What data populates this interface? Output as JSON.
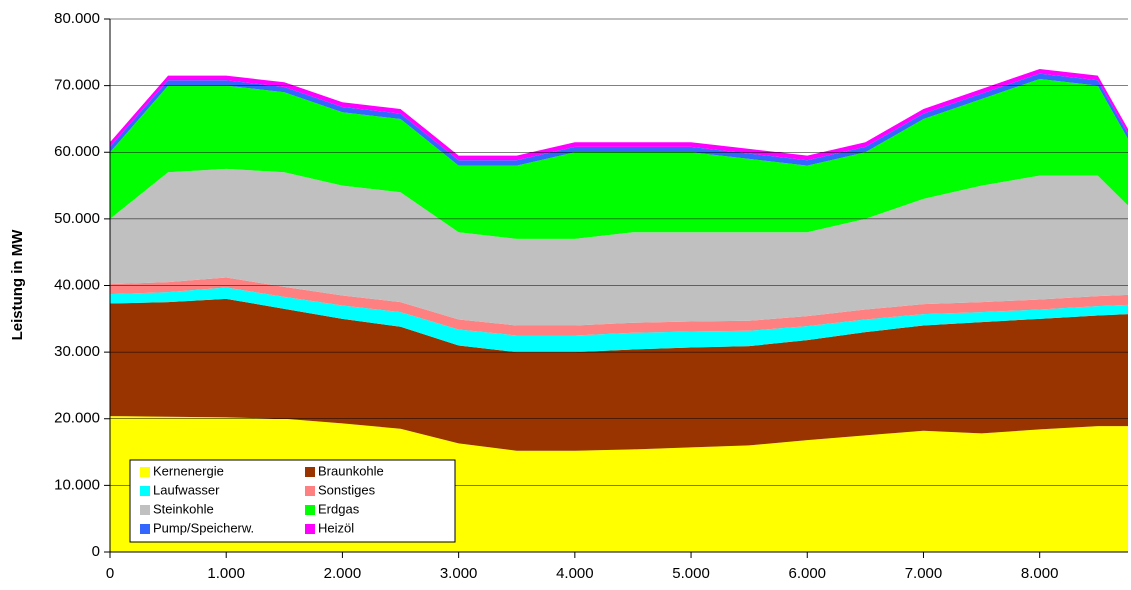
{
  "chart_data": {
    "type": "stacked_area",
    "y_label": "Leistung in MW",
    "x": [
      0,
      500,
      1000,
      1500,
      2000,
      2500,
      3000,
      3500,
      4000,
      4500,
      5000,
      5500,
      6000,
      6500,
      7000,
      7500,
      8000,
      8500,
      8760
    ],
    "series": [
      {
        "name": "Kernenergie",
        "color": "#ffff00",
        "values": [
          20400,
          20300,
          20200,
          20000,
          19300,
          18500,
          16300,
          15200,
          15200,
          15400,
          15700,
          16000,
          16800,
          17500,
          18200,
          17800,
          18400,
          18900,
          18900
        ]
      },
      {
        "name": "Braunkohle",
        "color": "#993300",
        "values": [
          16900,
          17200,
          17800,
          16500,
          15700,
          15300,
          14700,
          14800,
          14800,
          15000,
          15000,
          14900,
          15000,
          15500,
          15800,
          16700,
          16600,
          16600,
          16800
        ]
      },
      {
        "name": "Laufwasser",
        "color": "#00ffff",
        "values": [
          1400,
          1500,
          1700,
          1800,
          2000,
          2200,
          2400,
          2500,
          2500,
          2500,
          2400,
          2300,
          2100,
          1900,
          1700,
          1500,
          1400,
          1400,
          1400
        ]
      },
      {
        "name": "Sonstiges",
        "color": "#ff8080",
        "values": [
          1500,
          1500,
          1500,
          1500,
          1500,
          1500,
          1500,
          1500,
          1500,
          1500,
          1500,
          1500,
          1500,
          1500,
          1500,
          1500,
          1500,
          1500,
          1500
        ]
      },
      {
        "name": "Steinkohle",
        "color": "#c0c0c0",
        "values": [
          9800,
          16500,
          16300,
          17200,
          16500,
          16500,
          13100,
          13000,
          13000,
          13600,
          13400,
          13300,
          12600,
          13600,
          15800,
          17500,
          18600,
          18100,
          13400
        ]
      },
      {
        "name": "Erdgas",
        "color": "#00ff00",
        "values": [
          10000,
          13000,
          12500,
          12000,
          11000,
          11000,
          10000,
          11000,
          13000,
          12000,
          12000,
          11000,
          10000,
          10000,
          12000,
          13000,
          14500,
          13500,
          10000
        ]
      },
      {
        "name": "Pump/Speicherw.",
        "color": "#3366ff",
        "values": [
          800,
          800,
          800,
          800,
          800,
          800,
          800,
          800,
          800,
          800,
          800,
          800,
          800,
          800,
          800,
          800,
          800,
          800,
          800
        ]
      },
      {
        "name": "Heizöl",
        "color": "#ff00ff",
        "values": [
          700,
          700,
          700,
          700,
          700,
          700,
          700,
          700,
          700,
          700,
          700,
          700,
          700,
          700,
          700,
          700,
          700,
          700,
          700
        ]
      }
    ],
    "xlim": [
      0,
      8760
    ],
    "xticks": [
      0,
      {
        "value": 1000,
        "label": "1.000"
      },
      {
        "value": 2000,
        "label": "2.000"
      },
      {
        "value": 3000,
        "label": "3.000"
      },
      {
        "value": 4000,
        "label": "4.000"
      },
      {
        "value": 5000,
        "label": "5.000"
      },
      {
        "value": 6000,
        "label": "6.000"
      },
      {
        "value": 7000,
        "label": "7.000"
      },
      {
        "value": 8000,
        "label": "8.000"
      }
    ],
    "ylim": [
      0,
      80000
    ],
    "yticks": [
      0,
      {
        "value": 10000,
        "label": "10.000"
      },
      {
        "value": 20000,
        "label": "20.000"
      },
      {
        "value": 30000,
        "label": "30.000"
      },
      {
        "value": 40000,
        "label": "40.000"
      },
      {
        "value": 50000,
        "label": "50.000"
      },
      {
        "value": 60000,
        "label": "60.000"
      },
      {
        "value": 70000,
        "label": "70.000"
      },
      {
        "value": 80000,
        "label": "80.000"
      }
    ],
    "grid": true,
    "legend": "lower-left"
  }
}
